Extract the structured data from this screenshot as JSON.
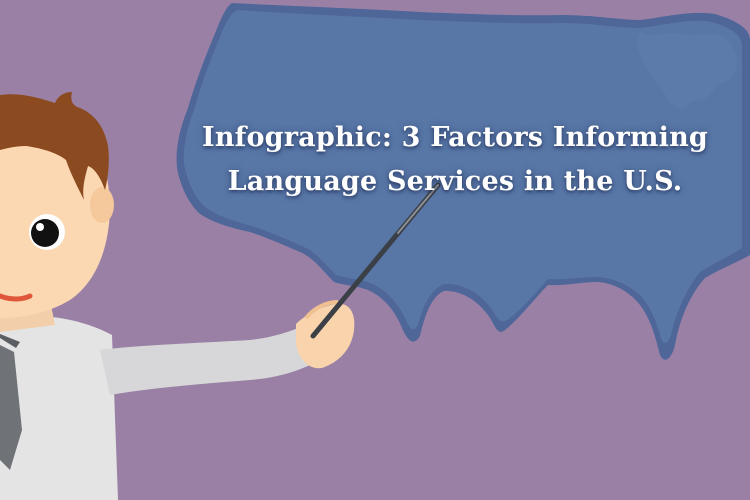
{
  "banner": {
    "title_line1": "Infographic: 3 Factors Informing",
    "title_line2": "Language Services in the U.S."
  },
  "colors": {
    "background": "#9b80a6",
    "map_fill": "#5877a7",
    "map_outline": "#506597",
    "title_text": "#ffffff"
  },
  "illustration": {
    "map": "united-states-map",
    "character": "presenter-with-pointer"
  }
}
